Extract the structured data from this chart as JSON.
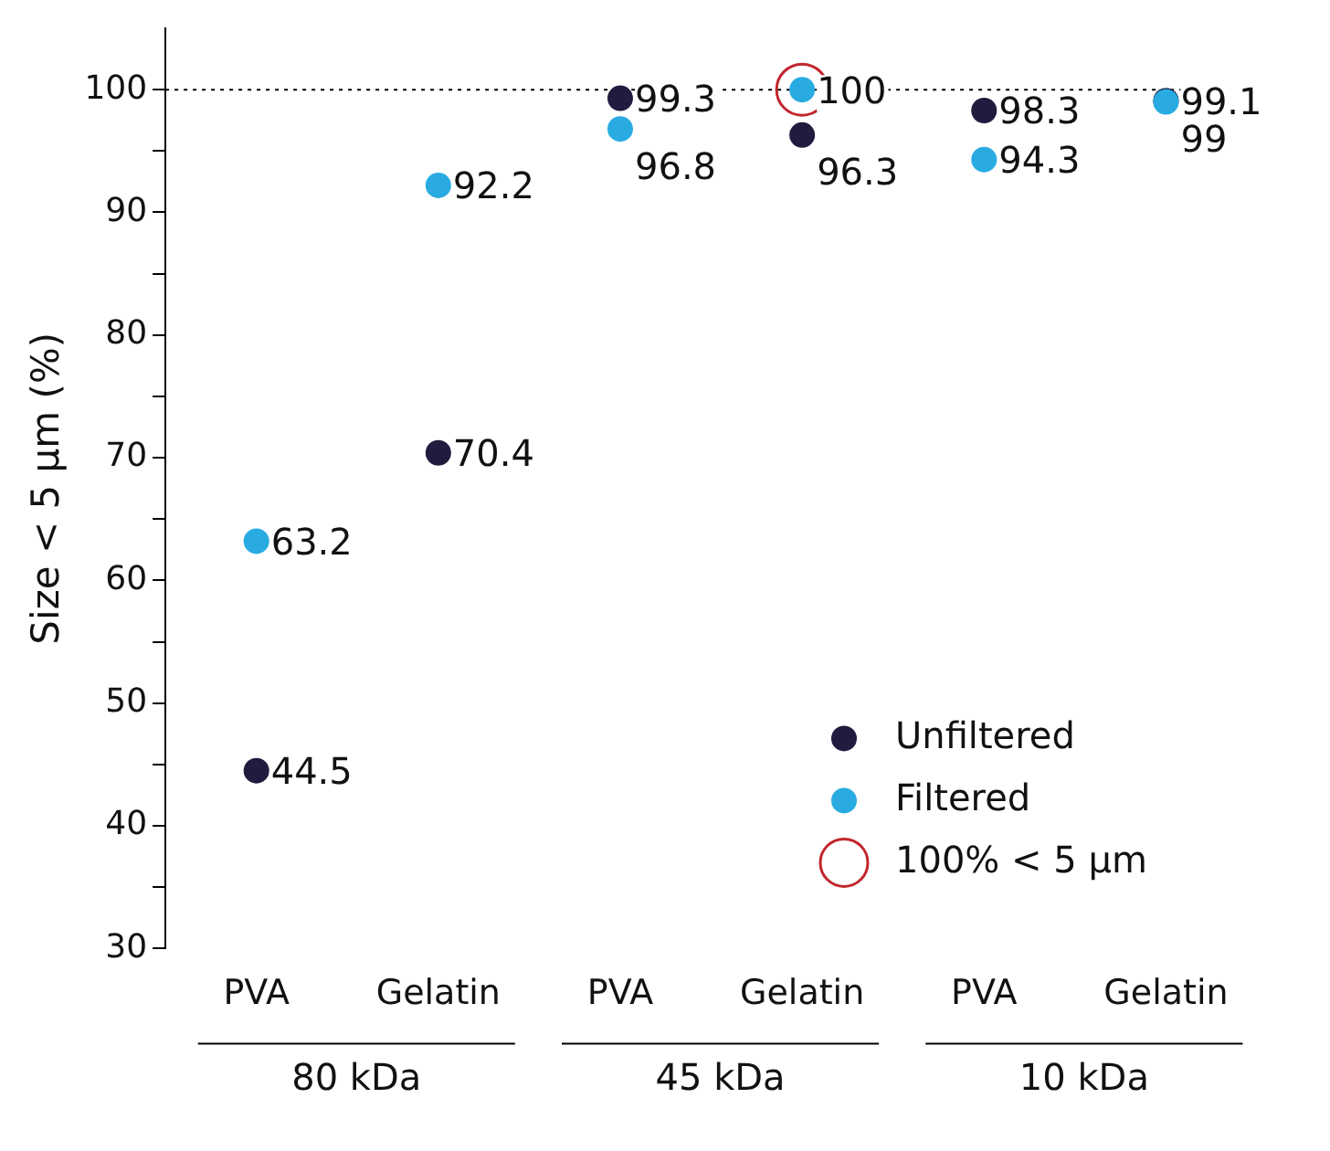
{
  "chart_data": {
    "type": "scatter",
    "ylabel": "Size < 5 µm (%)",
    "categories": [
      "PVA",
      "Gelatin",
      "PVA",
      "Gelatin",
      "PVA",
      "Gelatin"
    ],
    "annotations": [
      "80 kDa",
      "45 kDa",
      "10 kDa"
    ],
    "series": [
      {
        "name": "Unfiltered",
        "color": "#1f1c3f",
        "values": [
          44.5,
          70.4,
          99.3,
          96.3,
          98.3,
          99.1
        ],
        "value_labels": [
          "44.5",
          "70.4",
          "99.3",
          "96.3",
          "98.3",
          "99.1"
        ]
      },
      {
        "name": "Filtered",
        "color": "#29abe2",
        "values": [
          63.2,
          92.2,
          96.8,
          100,
          94.3,
          99
        ],
        "value_labels": [
          "63.2",
          "92.2",
          "96.8",
          "100",
          "94.3",
          "99"
        ]
      },
      {
        "name": "100% < 5 µm",
        "color": "#c1272d",
        "values": [
          null,
          null,
          null,
          100,
          null,
          null
        ]
      }
    ],
    "ylim": [
      30,
      105
    ],
    "yticks": [
      30,
      {
        "value": 35,
        "label": null
      },
      40,
      {
        "value": 45,
        "label": null
      },
      50,
      {
        "value": 55,
        "label": null
      },
      60,
      {
        "value": 65,
        "label": null
      },
      70,
      {
        "value": 75,
        "label": null
      },
      80,
      {
        "value": 85,
        "label": null
      },
      90,
      {
        "value": 95,
        "label": null
      },
      100
    ],
    "ref_lines": [
      {
        "axis": "y",
        "value": 100,
        "line_style": "dotted",
        "color": "#000000"
      }
    ],
    "grid": false,
    "legend": "bottom right",
    "marker": "circle"
  }
}
